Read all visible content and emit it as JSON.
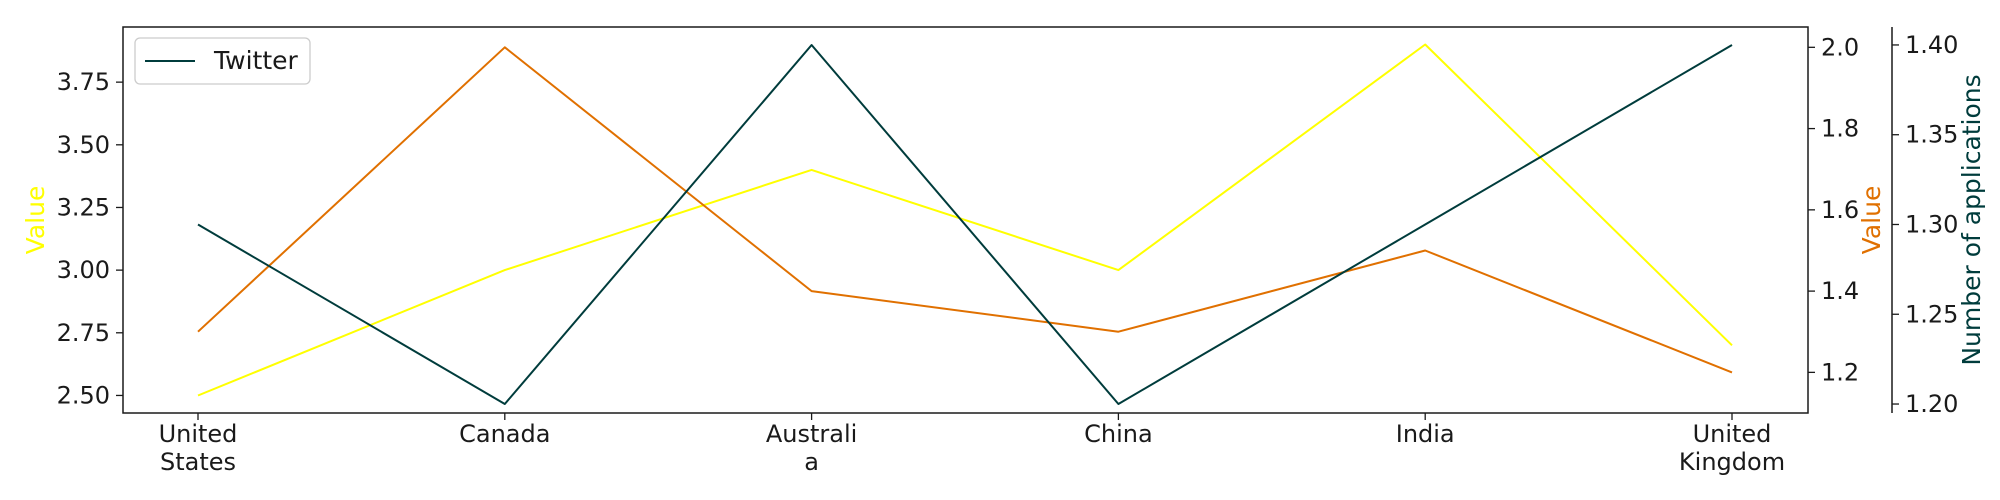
{
  "chart_data": {
    "type": "line",
    "categories": [
      "United States",
      "Canada",
      "Australia",
      "China",
      "India",
      "United Kingdom"
    ],
    "category_label_lines": [
      [
        "United",
        "States"
      ],
      [
        "Canada"
      ],
      [
        "Australi",
        "a"
      ],
      [
        "China"
      ],
      [
        "India"
      ],
      [
        "United",
        "Kingdom"
      ]
    ],
    "axes": {
      "left": {
        "label": "Value",
        "color": "#ffff00",
        "ylim": [
          2.43,
          3.97
        ],
        "ticks": [
          2.5,
          2.75,
          3.0,
          3.25,
          3.5,
          3.75
        ],
        "tick_labels": [
          "2.50",
          "2.75",
          "3.00",
          "3.25",
          "3.50",
          "3.75"
        ]
      },
      "right1": {
        "label": "Value",
        "color": "#e07000",
        "ylim": [
          1.1,
          2.05
        ],
        "ticks": [
          1.2,
          1.4,
          1.6,
          1.8,
          2.0
        ],
        "tick_labels": [
          "1.2",
          "1.4",
          "1.6",
          "1.8",
          "2.0"
        ]
      },
      "right2": {
        "label": "Number of applications",
        "color": "#003c3c",
        "ylim": [
          1.195,
          1.41
        ],
        "ticks": [
          1.2,
          1.25,
          1.3,
          1.35,
          1.4
        ],
        "tick_labels": [
          "1.20",
          "1.25",
          "1.30",
          "1.35",
          "1.40"
        ]
      }
    },
    "series": [
      {
        "axis": "left",
        "color": "#ffff00",
        "values": [
          2.5,
          3.0,
          3.4,
          3.0,
          3.9,
          2.7
        ]
      },
      {
        "axis": "right1",
        "color": "#e07000",
        "values": [
          1.3,
          2.0,
          1.4,
          1.3,
          1.5,
          1.2
        ]
      },
      {
        "name": "Twitter",
        "axis": "right2",
        "color": "#003c3c",
        "values": [
          1.3,
          1.2,
          1.4,
          1.2,
          1.3,
          1.4
        ]
      }
    ],
    "legend": {
      "placement": "top-left",
      "entries": [
        "Twitter"
      ]
    },
    "grid": false
  }
}
